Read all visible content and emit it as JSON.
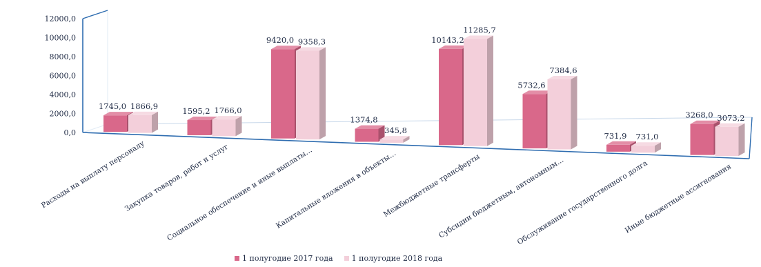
{
  "chart_data": {
    "type": "bar",
    "title": "",
    "xlabel": "",
    "ylabel": "",
    "ylim": [
      0,
      12000
    ],
    "grid": false,
    "legend_position": "bottom",
    "y_ticks": [
      "0,0",
      "2000,0",
      "4000,0",
      "6000,0",
      "8000,0",
      "10000,0",
      "12000,0"
    ],
    "categories": [
      "Расходы на выплату персоналу",
      "Закупка товаров, работ и услуг",
      "Социальное обеспечение и иные выплаты…",
      "Капитальные вложения в объекты…",
      "Межбюджетные трансферты",
      "Субсидии бюджетным, автономным…",
      "Обслуживание государственного долга",
      "Иные бюджетные ассигнования"
    ],
    "series": [
      {
        "name": "1 полугодие 2017 года",
        "color": "#d9688a",
        "values": [
          1745.0,
          1595.2,
          9420.0,
          1374.8,
          10143.2,
          5732.6,
          731.9,
          3268.0
        ],
        "labels": [
          "1745,0",
          "1595,2",
          "9420,0",
          "1374,8",
          "10143,2",
          "5732,6",
          "731,9",
          "3268,0"
        ]
      },
      {
        "name": "1 полугодие 2018 года",
        "color": "#f3cfda",
        "values": [
          1866.9,
          1766.0,
          9358.3,
          345.8,
          11285.7,
          7384.6,
          731.0,
          3073.2
        ],
        "labels": [
          "1866,9",
          "1766,0",
          "9358,3",
          "345,8",
          "11285,7",
          "7384,6",
          "731,0",
          "3073,2"
        ]
      }
    ]
  }
}
